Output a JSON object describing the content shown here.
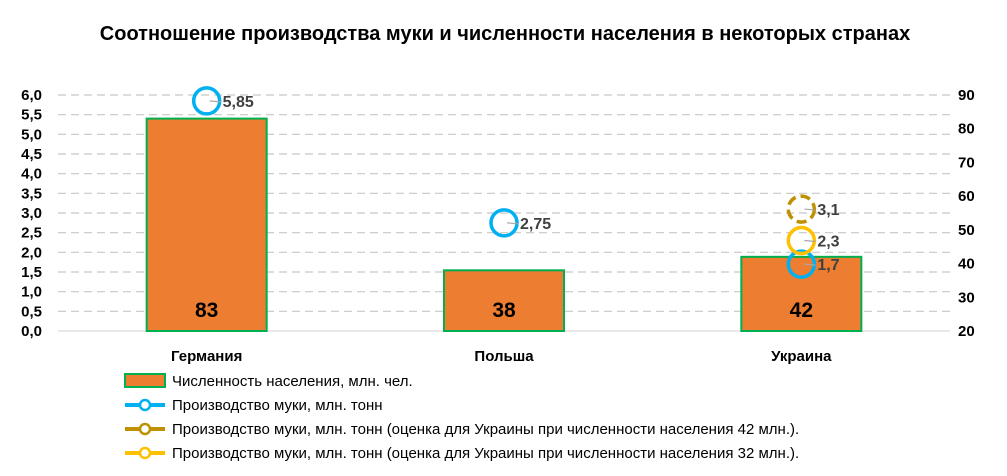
{
  "chart_data": {
    "type": "bar",
    "title": "Соотношение производства  муки и численности населения в некоторых странах",
    "categories": [
      "Германия",
      "Польша",
      "Украина"
    ],
    "y_left": {
      "ylim": [
        0,
        6
      ],
      "ticks": [
        "0,0",
        "0,5",
        "1,0",
        "1,5",
        "2,0",
        "2,5",
        "3,0",
        "3,5",
        "4,0",
        "4,5",
        "5,0",
        "5,5",
        "6,0"
      ]
    },
    "y_right": {
      "ylim": [
        20,
        90
      ],
      "ticks": [
        "20",
        "30",
        "40",
        "50",
        "60",
        "70",
        "80",
        "90"
      ]
    },
    "grid": true,
    "legend_position": "bottom",
    "series": [
      {
        "name": "Численность населения, млн. чел.",
        "kind": "bar",
        "axis": "right",
        "color": "#ED7D31",
        "border_color": "#00B050",
        "values": [
          83,
          38,
          42
        ],
        "labels": [
          "83",
          "38",
          "42"
        ]
      },
      {
        "name": "Производство муки, млн. тонн",
        "kind": "point",
        "axis": "left",
        "color": "#00B0F0",
        "values": [
          5.85,
          2.75,
          1.7
        ],
        "labels": [
          "5,85",
          "2,75",
          "1,7"
        ]
      },
      {
        "name": "Производство муки, млн. тонн (оценка для Украины при численности населения 42 млн.).",
        "kind": "point",
        "axis": "left",
        "color": "#BF9000",
        "values": [
          null,
          null,
          3.1
        ],
        "labels": [
          "",
          "",
          "3,1"
        ]
      },
      {
        "name": "Производство муки, млн. тонн (оценка для Украины при численности населения 32 млн.).",
        "kind": "point",
        "axis": "left",
        "color": "#FFC000",
        "values": [
          null,
          null,
          2.3
        ],
        "labels": [
          "",
          "",
          "2,3"
        ]
      }
    ]
  }
}
